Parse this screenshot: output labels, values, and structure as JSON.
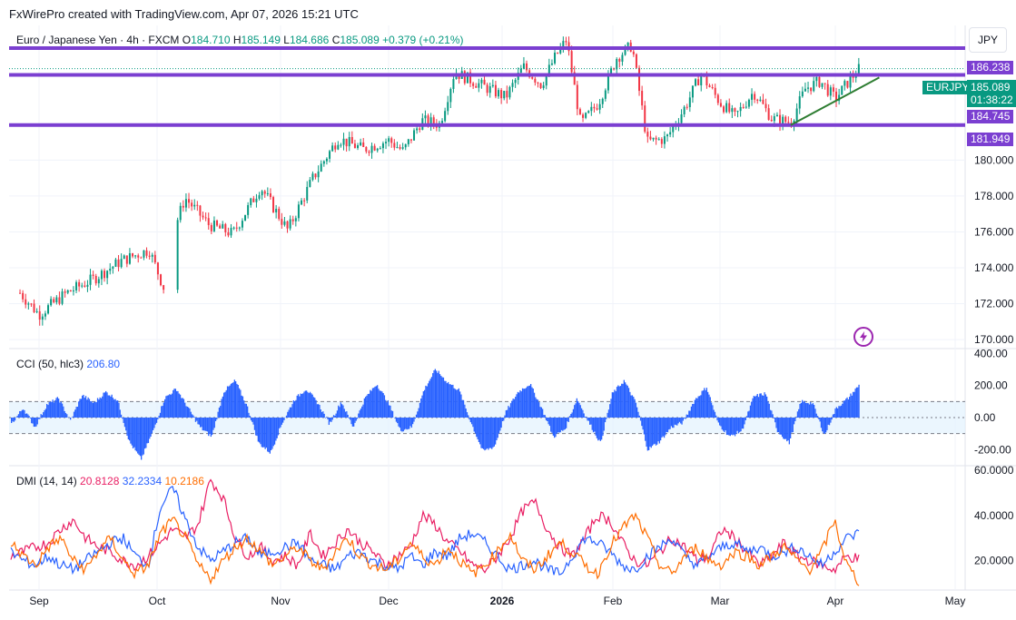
{
  "header": {
    "text": "FxWirePro created with TradingView.com, Apr 07, 2026 15:21 UTC"
  },
  "legend": {
    "symbol": "Euro / Japanese Yen · 4h · FXCM",
    "o_label": "O",
    "o": "184.710",
    "h_label": "H",
    "h": "185.149",
    "l_label": "L",
    "l": "184.686",
    "c_label": "C",
    "c": "185.089",
    "change": "+0.379 (+0.21%)"
  },
  "currency_button": "JPY",
  "price_tags": {
    "symbol": "EURJPY",
    "last": "185.089",
    "countdown": "01:38:22",
    "level_top": "186.238",
    "level_mid": "184.745",
    "level_bot": "181.949"
  },
  "cci_legend": {
    "name": "CCI (50, hlc3)",
    "value": "206.80"
  },
  "dmi_legend": {
    "name": "DMI (14, 14)",
    "plus": "20.8128",
    "minus": "32.2334",
    "adx": "10.2186"
  },
  "colors": {
    "up": "#089981",
    "down": "#f23645",
    "level": "#7b3fd1",
    "trend": "#2e7d32",
    "cci": "#2962ff",
    "dmi_plus": "#e91e63",
    "dmi_minus": "#2962ff",
    "adx": "#ff6d00"
  },
  "chart_data": [
    {
      "type": "candlestick",
      "title": "Euro / Japanese Yen · 4h · FXCM",
      "x_ticks": [
        "Sep",
        "Oct",
        "Nov",
        "Dec",
        "2026",
        "Feb",
        "Mar",
        "Apr",
        "May"
      ],
      "y_ticks": [
        "170.000",
        "172.000",
        "174.000",
        "176.000",
        "178.000",
        "180.000"
      ],
      "ylim": [
        169.5,
        187.5
      ],
      "horizontal_levels": [
        186.238,
        184.745,
        181.949
      ],
      "last_price": 185.089,
      "trendline": [
        [
          "2026-03-20",
          181.95
        ],
        [
          "2026-04-12",
          184.6
        ]
      ],
      "approx_close_path": [
        {
          "x": "Aug 27",
          "y": 172.6
        },
        {
          "x": "Sep 01",
          "y": 171.4
        },
        {
          "x": "Sep 08",
          "y": 172.6
        },
        {
          "x": "Sep 15",
          "y": 173.4
        },
        {
          "x": "Sep 22",
          "y": 174.4
        },
        {
          "x": "Sep 29",
          "y": 175.0
        },
        {
          "x": "Oct 03",
          "y": 172.7
        },
        {
          "x": "Oct 06",
          "y": 176.6
        },
        {
          "x": "Oct 08",
          "y": 177.9
        },
        {
          "x": "Oct 14",
          "y": 176.4
        },
        {
          "x": "Oct 20",
          "y": 175.9
        },
        {
          "x": "Oct 27",
          "y": 178.5
        },
        {
          "x": "Nov 03",
          "y": 176.1
        },
        {
          "x": "Nov 10",
          "y": 179.0
        },
        {
          "x": "Nov 17",
          "y": 181.2
        },
        {
          "x": "Nov 24",
          "y": 180.6
        },
        {
          "x": "Dec 01",
          "y": 181.1
        },
        {
          "x": "Dec 05",
          "y": 180.5
        },
        {
          "x": "Dec 10",
          "y": 182.2
        },
        {
          "x": "Dec 15",
          "y": 182.0
        },
        {
          "x": "Dec 19",
          "y": 184.9
        },
        {
          "x": "Dec 26",
          "y": 184.2
        },
        {
          "x": "Jan 02",
          "y": 183.5
        },
        {
          "x": "Jan 07",
          "y": 185.2
        },
        {
          "x": "Jan 12",
          "y": 184.2
        },
        {
          "x": "Jan 16",
          "y": 185.8
        },
        {
          "x": "Jan 19",
          "y": 186.7
        },
        {
          "x": "Jan 23",
          "y": 182.0
        },
        {
          "x": "Jan 28",
          "y": 183.2
        },
        {
          "x": "Feb 02",
          "y": 185.7
        },
        {
          "x": "Feb 06",
          "y": 186.4
        },
        {
          "x": "Feb 10",
          "y": 181.0
        },
        {
          "x": "Feb 15",
          "y": 181.2
        },
        {
          "x": "Feb 20",
          "y": 183.0
        },
        {
          "x": "Feb 24",
          "y": 184.8
        },
        {
          "x": "Mar 01",
          "y": 183.2
        },
        {
          "x": "Mar 05",
          "y": 182.4
        },
        {
          "x": "Mar 10",
          "y": 183.8
        },
        {
          "x": "Mar 15",
          "y": 182.3
        },
        {
          "x": "Mar 20",
          "y": 182.1
        },
        {
          "x": "Mar 24",
          "y": 184.0
        },
        {
          "x": "Mar 28",
          "y": 184.4
        },
        {
          "x": "Apr 01",
          "y": 183.4
        },
        {
          "x": "Apr 04",
          "y": 184.3
        },
        {
          "x": "Apr 07",
          "y": 185.089
        }
      ]
    },
    {
      "type": "area",
      "title": "CCI (50, hlc3)",
      "y_ticks": [
        "400.00",
        "200.00",
        "0.00",
        "-200.00"
      ],
      "ylim": [
        -300,
        430
      ],
      "band": [
        -100,
        100
      ],
      "approx_values": [
        -40,
        60,
        -60,
        80,
        120,
        -20,
        140,
        90,
        160,
        110,
        -150,
        -260,
        -90,
        120,
        180,
        60,
        -60,
        -120,
        160,
        230,
        70,
        -160,
        -220,
        -30,
        110,
        180,
        90,
        -40,
        100,
        -60,
        120,
        210,
        90,
        -80,
        -60,
        170,
        300,
        220,
        170,
        -30,
        -210,
        -180,
        40,
        160,
        210,
        60,
        -120,
        -70,
        120,
        -30,
        -160,
        150,
        230,
        90,
        -200,
        -150,
        -60,
        -30,
        110,
        190,
        -40,
        -120,
        -80,
        130,
        150,
        -80,
        -160,
        100,
        90,
        -110,
        60,
        120,
        206.8
      ]
    },
    {
      "type": "line",
      "title": "DMI (14, 14)",
      "y_ticks": [
        "60.0000",
        "40.0000",
        "20.0000"
      ],
      "ylim": [
        7,
        62
      ],
      "series": [
        {
          "name": "+DI",
          "last": 20.8128,
          "approx_values": [
            22,
            24,
            26,
            28,
            34,
            38,
            30,
            26,
            24,
            20,
            18,
            22,
            28,
            34,
            30,
            36,
            56,
            48,
            30,
            22,
            26,
            20,
            22,
            18,
            32,
            22,
            28,
            34,
            28,
            24,
            18,
            22,
            26,
            40,
            36,
            28,
            24,
            18,
            16,
            22,
            30,
            42,
            46,
            34,
            26,
            22,
            30,
            40,
            38,
            28,
            20,
            18,
            24,
            30,
            26,
            20,
            22,
            34,
            30,
            24,
            18,
            22,
            28,
            22,
            20,
            18,
            16,
            22,
            20.81
          ]
        },
        {
          "name": "-DI",
          "last": 32.2334,
          "approx_values": [
            24,
            20,
            18,
            22,
            18,
            16,
            20,
            24,
            28,
            30,
            22,
            18,
            44,
            52,
            38,
            26,
            20,
            24,
            28,
            30,
            22,
            24,
            26,
            28,
            20,
            18,
            16,
            22,
            24,
            20,
            18,
            16,
            22,
            18,
            24,
            22,
            30,
            32,
            28,
            22,
            16,
            18,
            20,
            16,
            14,
            22,
            30,
            28,
            24,
            18,
            16,
            22,
            26,
            30,
            22,
            18,
            22,
            26,
            28,
            24,
            26,
            22,
            24,
            26,
            22,
            18,
            24,
            30,
            32.23
          ]
        },
        {
          "name": "ADX",
          "last": 10.2186,
          "approx_values": [
            28,
            22,
            18,
            26,
            30,
            20,
            16,
            24,
            30,
            20,
            14,
            18,
            32,
            38,
            30,
            18,
            12,
            20,
            26,
            30,
            24,
            18,
            22,
            26,
            20,
            16,
            24,
            30,
            22,
            18,
            16,
            20,
            28,
            22,
            18,
            26,
            20,
            14,
            18,
            24,
            32,
            20,
            16,
            22,
            28,
            24,
            18,
            14,
            26,
            34,
            40,
            30,
            18,
            14,
            22,
            26,
            20,
            18,
            24,
            22,
            18,
            22,
            26,
            20,
            16,
            24,
            38,
            18,
            10.22
          ]
        }
      ]
    }
  ],
  "time_axis": [
    "Sep",
    "Oct",
    "Nov",
    "Dec",
    "2026",
    "Feb",
    "Mar",
    "Apr",
    "May"
  ]
}
